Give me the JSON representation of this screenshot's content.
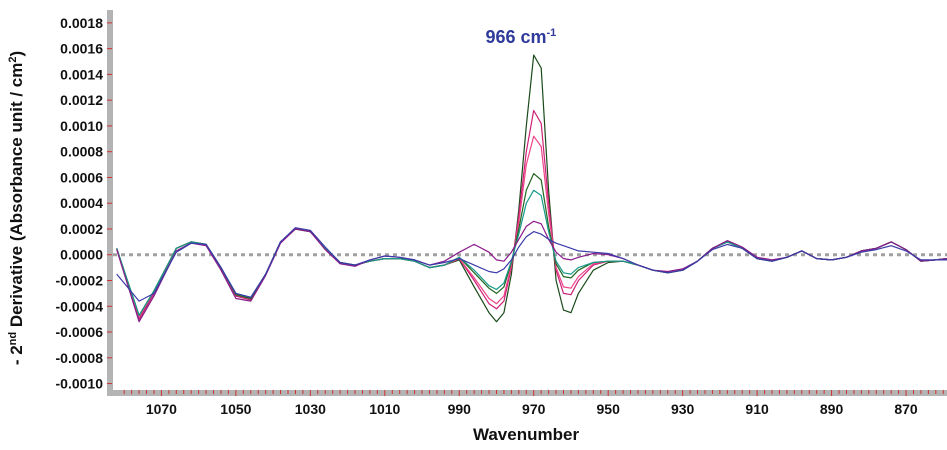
{
  "chart_data": {
    "type": "line",
    "xlabel": "Wavenumber",
    "ylabel": {
      "prefix": "- 2",
      "sup": "nd",
      "rest": " Derivative (Absorbance unit / cm",
      "sup2": "2",
      "suffix": ")"
    },
    "xlim": [
      1083,
      859
    ],
    "ylim": [
      -0.00105,
      0.0019
    ],
    "x_ticks": [
      1070,
      1050,
      1030,
      1010,
      990,
      970,
      950,
      930,
      910,
      890,
      870
    ],
    "x_tick_labels": [
      "1070",
      "1050",
      "1030",
      "1010",
      "990",
      "970",
      "950",
      "930",
      "910",
      "890",
      "870"
    ],
    "y_ticks": [
      0.0018,
      0.0016,
      0.0014,
      0.0012,
      0.001,
      0.0008,
      0.0006,
      0.0004,
      0.0002,
      0.0,
      -0.0002,
      -0.0004,
      -0.0006,
      -0.0008,
      -0.001
    ],
    "y_tick_labels": [
      "0.0018",
      "0.0016",
      "0.0014",
      "0.0012",
      "0.0010",
      "0.0008",
      "0.0006",
      "0.0004",
      "0.0002",
      "0.0000",
      "-0.0002",
      "-0.0004",
      "-0.0006",
      "-0.0008",
      "-0.0010"
    ],
    "reference_line": {
      "y": 0.0,
      "style": "dotted",
      "color": "#a0a0a0"
    },
    "annotation": {
      "text": "966 cm",
      "sup": "-1",
      "x": 969,
      "color": "#2f3a9a"
    },
    "grid": false,
    "legend": "none",
    "series": [
      {
        "color": "#1a4a1a",
        "x": [
          1082,
          1076,
          1072,
          1066,
          1062,
          1058,
          1054,
          1050,
          1046,
          1042,
          1038,
          1034,
          1030,
          1026,
          1022,
          1018,
          1014,
          1010,
          1006,
          1002,
          998,
          994,
          990,
          986,
          982,
          980,
          978,
          976,
          974,
          972,
          970,
          968,
          966,
          964,
          962,
          960,
          958,
          954,
          950,
          946,
          942,
          938,
          934,
          930,
          926,
          922,
          918,
          914,
          910,
          906,
          902,
          898,
          894,
          890,
          886,
          882,
          878,
          874,
          870,
          866,
          862,
          859
        ],
        "y": [
          5e-05,
          -0.0005,
          -0.0003,
          5e-05,
          0.0001,
          8e-05,
          -0.0001,
          -0.00032,
          -0.00035,
          -0.00015,
          0.0001,
          0.0002,
          0.00018,
          5e-05,
          -6e-05,
          -8e-05,
          -5e-05,
          -3e-05,
          -3e-05,
          -5e-05,
          -0.0001,
          -8e-05,
          -4e-05,
          -0.00025,
          -0.00045,
          -0.00052,
          -0.00045,
          -0.00015,
          0.00035,
          0.001,
          0.00155,
          0.00145,
          0.0005,
          -0.0002,
          -0.00043,
          -0.00045,
          -0.0003,
          -0.00012,
          -6e-05,
          -5e-05,
          -8e-05,
          -0.00012,
          -0.00014,
          -0.00012,
          -5e-05,
          5e-05,
          0.0001,
          5e-05,
          -3e-05,
          -5e-05,
          -2e-05,
          3e-05,
          -3e-05,
          -4e-05,
          -2e-05,
          3e-05,
          5e-05,
          0.0001,
          4e-05,
          -5e-05,
          -4e-05,
          -3e-05
        ]
      },
      {
        "color": "#cc2277",
        "x": [
          1082,
          1076,
          1072,
          1066,
          1062,
          1058,
          1054,
          1050,
          1046,
          1042,
          1038,
          1034,
          1030,
          1026,
          1022,
          1018,
          1014,
          1010,
          1006,
          1002,
          998,
          994,
          990,
          986,
          982,
          980,
          978,
          976,
          974,
          972,
          970,
          968,
          966,
          964,
          962,
          960,
          958,
          954,
          950,
          946,
          942,
          938,
          934,
          930,
          926,
          922,
          918,
          914,
          910,
          906,
          902,
          898,
          894,
          890,
          886,
          882,
          878,
          874,
          870,
          866,
          862,
          859
        ],
        "y": [
          5e-05,
          -0.0005,
          -0.0003,
          5e-05,
          0.0001,
          8e-05,
          -0.0001,
          -0.00032,
          -0.00035,
          -0.00015,
          0.0001,
          0.0002,
          0.00018,
          5e-05,
          -6e-05,
          -8e-05,
          -5e-05,
          -3e-05,
          -3e-05,
          -5e-05,
          -0.0001,
          -8e-05,
          -3e-05,
          -0.0002,
          -0.00038,
          -0.00042,
          -0.00036,
          -0.0001,
          0.0003,
          0.0008,
          0.00112,
          0.00102,
          0.0004,
          -0.00012,
          -0.0003,
          -0.00031,
          -0.0002,
          -8e-05,
          -5e-05,
          -5e-05,
          -8e-05,
          -0.00012,
          -0.00014,
          -0.00012,
          -5e-05,
          5e-05,
          0.0001,
          5e-05,
          -3e-05,
          -5e-05,
          -2e-05,
          3e-05,
          -3e-05,
          -4e-05,
          -2e-05,
          3e-05,
          5e-05,
          0.0001,
          4e-05,
          -5e-05,
          -4e-05,
          -3e-05
        ]
      },
      {
        "color": "#ee4488",
        "x": [
          1082,
          1076,
          1072,
          1066,
          1062,
          1058,
          1054,
          1050,
          1046,
          1042,
          1038,
          1034,
          1030,
          1026,
          1022,
          1018,
          1014,
          1010,
          1006,
          1002,
          998,
          994,
          990,
          986,
          982,
          980,
          978,
          976,
          974,
          972,
          970,
          968,
          966,
          964,
          962,
          960,
          958,
          954,
          950,
          946,
          942,
          938,
          934,
          930,
          926,
          922,
          918,
          914,
          910,
          906,
          902,
          898,
          894,
          890,
          886,
          882,
          878,
          874,
          870,
          866,
          862,
          859
        ],
        "y": [
          5e-05,
          -0.00048,
          -0.00028,
          5e-05,
          0.0001,
          8e-05,
          -0.0001,
          -0.00031,
          -0.00034,
          -0.00015,
          0.0001,
          0.0002,
          0.00018,
          5e-05,
          -6e-05,
          -8e-05,
          -5e-05,
          -3e-05,
          -3e-05,
          -5e-05,
          -0.0001,
          -8e-05,
          -3e-05,
          -0.00018,
          -0.00034,
          -0.00038,
          -0.00032,
          -8e-05,
          0.00025,
          0.0007,
          0.00092,
          0.00084,
          0.00032,
          -0.0001,
          -0.00025,
          -0.00026,
          -0.00017,
          -7e-05,
          -5e-05,
          -5e-05,
          -8e-05,
          -0.00012,
          -0.00014,
          -0.00012,
          -5e-05,
          5e-05,
          0.0001,
          5e-05,
          -3e-05,
          -5e-05,
          -2e-05,
          3e-05,
          -3e-05,
          -4e-05,
          -2e-05,
          3e-05,
          5e-05,
          0.0001,
          4e-05,
          -5e-05,
          -4e-05,
          -3e-05
        ]
      },
      {
        "color": "#226622",
        "x": [
          1082,
          1076,
          1072,
          1066,
          1062,
          1058,
          1054,
          1050,
          1046,
          1042,
          1038,
          1034,
          1030,
          1026,
          1022,
          1018,
          1014,
          1010,
          1006,
          1002,
          998,
          994,
          990,
          986,
          982,
          980,
          978,
          976,
          974,
          972,
          970,
          968,
          966,
          964,
          962,
          960,
          958,
          954,
          950,
          946,
          942,
          938,
          934,
          930,
          926,
          922,
          918,
          914,
          910,
          906,
          902,
          898,
          894,
          890,
          886,
          882,
          878,
          874,
          870,
          866,
          862,
          859
        ],
        "y": [
          5e-05,
          -0.00047,
          -0.00028,
          5e-05,
          0.0001,
          8e-05,
          -0.0001,
          -0.00031,
          -0.00034,
          -0.00015,
          0.0001,
          0.0002,
          0.00018,
          5e-05,
          -6e-05,
          -8e-05,
          -5e-05,
          -3e-05,
          -3e-05,
          -5e-05,
          -0.0001,
          -8e-05,
          -2e-05,
          -0.00014,
          -0.00026,
          -0.0003,
          -0.00025,
          -6e-05,
          0.0002,
          0.0005,
          0.00063,
          0.00058,
          0.00022,
          -7e-05,
          -0.00017,
          -0.00018,
          -0.00012,
          -6e-05,
          -5e-05,
          -5e-05,
          -8e-05,
          -0.00012,
          -0.00014,
          -0.00012,
          -5e-05,
          5e-05,
          0.0001,
          5e-05,
          -3e-05,
          -5e-05,
          -2e-05,
          3e-05,
          -3e-05,
          -4e-05,
          -2e-05,
          3e-05,
          5e-05,
          0.0001,
          4e-05,
          -5e-05,
          -4e-05,
          -3e-05
        ]
      },
      {
        "color": "#179a8a",
        "x": [
          1082,
          1076,
          1072,
          1066,
          1062,
          1058,
          1054,
          1050,
          1046,
          1042,
          1038,
          1034,
          1030,
          1026,
          1022,
          1018,
          1014,
          1010,
          1006,
          1002,
          998,
          994,
          990,
          986,
          982,
          980,
          978,
          976,
          974,
          972,
          970,
          968,
          966,
          964,
          962,
          960,
          958,
          954,
          950,
          946,
          942,
          938,
          934,
          930,
          926,
          922,
          918,
          914,
          910,
          906,
          902,
          898,
          894,
          890,
          886,
          882,
          878,
          874,
          870,
          866,
          862,
          859
        ],
        "y": [
          5e-05,
          -0.00047,
          -0.00028,
          5e-05,
          0.0001,
          8e-05,
          -0.0001,
          -0.0003,
          -0.00033,
          -0.00015,
          0.0001,
          0.0002,
          0.00018,
          5e-05,
          -6e-05,
          -8e-05,
          -5e-05,
          -3e-05,
          -3e-05,
          -5e-05,
          -0.0001,
          -8e-05,
          -2e-05,
          -0.00012,
          -0.00024,
          -0.00027,
          -0.00022,
          -5e-05,
          0.00016,
          0.0004,
          0.0005,
          0.00046,
          0.00018,
          -5e-05,
          -0.00014,
          -0.00015,
          -0.0001,
          -6e-05,
          -5e-05,
          -5e-05,
          -8e-05,
          -0.00012,
          -0.00014,
          -0.00012,
          -5e-05,
          5e-05,
          0.0001,
          5e-05,
          -3e-05,
          -5e-05,
          -2e-05,
          3e-05,
          -3e-05,
          -4e-05,
          -2e-05,
          3e-05,
          5e-05,
          0.0001,
          4e-05,
          -5e-05,
          -4e-05,
          -3e-05
        ]
      },
      {
        "color": "#8a1a8a",
        "x": [
          1082,
          1076,
          1072,
          1066,
          1062,
          1058,
          1054,
          1050,
          1046,
          1042,
          1038,
          1034,
          1030,
          1026,
          1022,
          1018,
          1014,
          1010,
          1006,
          1002,
          998,
          994,
          990,
          986,
          982,
          980,
          978,
          976,
          974,
          972,
          970,
          968,
          966,
          964,
          962,
          960,
          958,
          954,
          950,
          946,
          942,
          938,
          934,
          930,
          926,
          922,
          918,
          914,
          910,
          906,
          902,
          898,
          894,
          890,
          886,
          882,
          878,
          874,
          870,
          866,
          862,
          859
        ],
        "y": [
          4e-05,
          -0.00052,
          -0.00032,
          3e-05,
          9e-05,
          7e-05,
          -0.00012,
          -0.00034,
          -0.00036,
          -0.00016,
          9e-05,
          0.0002,
          0.00018,
          4e-05,
          -7e-05,
          -9e-05,
          -4e-05,
          -1e-05,
          -2e-05,
          -4e-05,
          -8e-05,
          -5e-05,
          2e-05,
          8e-05,
          2e-05,
          -4e-05,
          -5e-05,
          2e-05,
          0.00012,
          0.00022,
          0.00026,
          0.00024,
          0.00012,
          2e-05,
          -3e-05,
          -4e-05,
          -2e-05,
          1e-05,
          0.0,
          -3e-05,
          -8e-05,
          -0.00012,
          -0.00013,
          -0.00011,
          -5e-05,
          5e-05,
          0.00011,
          6e-05,
          -2e-05,
          -4e-05,
          -2e-05,
          3e-05,
          -3e-05,
          -4e-05,
          -2e-05,
          3e-05,
          5e-05,
          0.0001,
          4e-05,
          -5e-05,
          -4e-05,
          -3e-05
        ]
      },
      {
        "color": "#3a3aa8",
        "x": [
          1082,
          1076,
          1072,
          1066,
          1062,
          1058,
          1054,
          1050,
          1046,
          1042,
          1038,
          1034,
          1030,
          1026,
          1022,
          1018,
          1014,
          1010,
          1006,
          1002,
          998,
          994,
          990,
          986,
          982,
          980,
          978,
          976,
          974,
          972,
          970,
          968,
          966,
          964,
          962,
          960,
          958,
          954,
          950,
          946,
          942,
          938,
          934,
          930,
          926,
          922,
          918,
          914,
          910,
          906,
          902,
          898,
          894,
          890,
          886,
          882,
          878,
          874,
          870,
          866,
          862,
          859
        ],
        "y": [
          -0.00015,
          -0.00036,
          -0.0003,
          2e-05,
          9e-05,
          8e-05,
          -0.0001,
          -0.0003,
          -0.00033,
          -0.00015,
          0.0001,
          0.00021,
          0.00019,
          6e-05,
          -6e-05,
          -8e-05,
          -4e-05,
          -1e-05,
          -2e-05,
          -4e-05,
          -8e-05,
          -6e-05,
          -3e-05,
          -8e-05,
          -0.00013,
          -0.00014,
          -0.00011,
          -4e-05,
          6e-05,
          0.00014,
          0.00018,
          0.00016,
          0.00012,
          9e-05,
          7e-05,
          5e-05,
          3e-05,
          2e-05,
          1e-05,
          -3e-05,
          -8e-05,
          -0.00012,
          -0.00014,
          -0.00012,
          -5e-05,
          4e-05,
          8e-05,
          5e-05,
          -3e-05,
          -5e-05,
          -2e-05,
          3e-05,
          -3e-05,
          -4e-05,
          -2e-05,
          2e-05,
          4e-05,
          7e-05,
          3e-05,
          -4e-05,
          -4e-05,
          -4e-05
        ]
      }
    ]
  }
}
